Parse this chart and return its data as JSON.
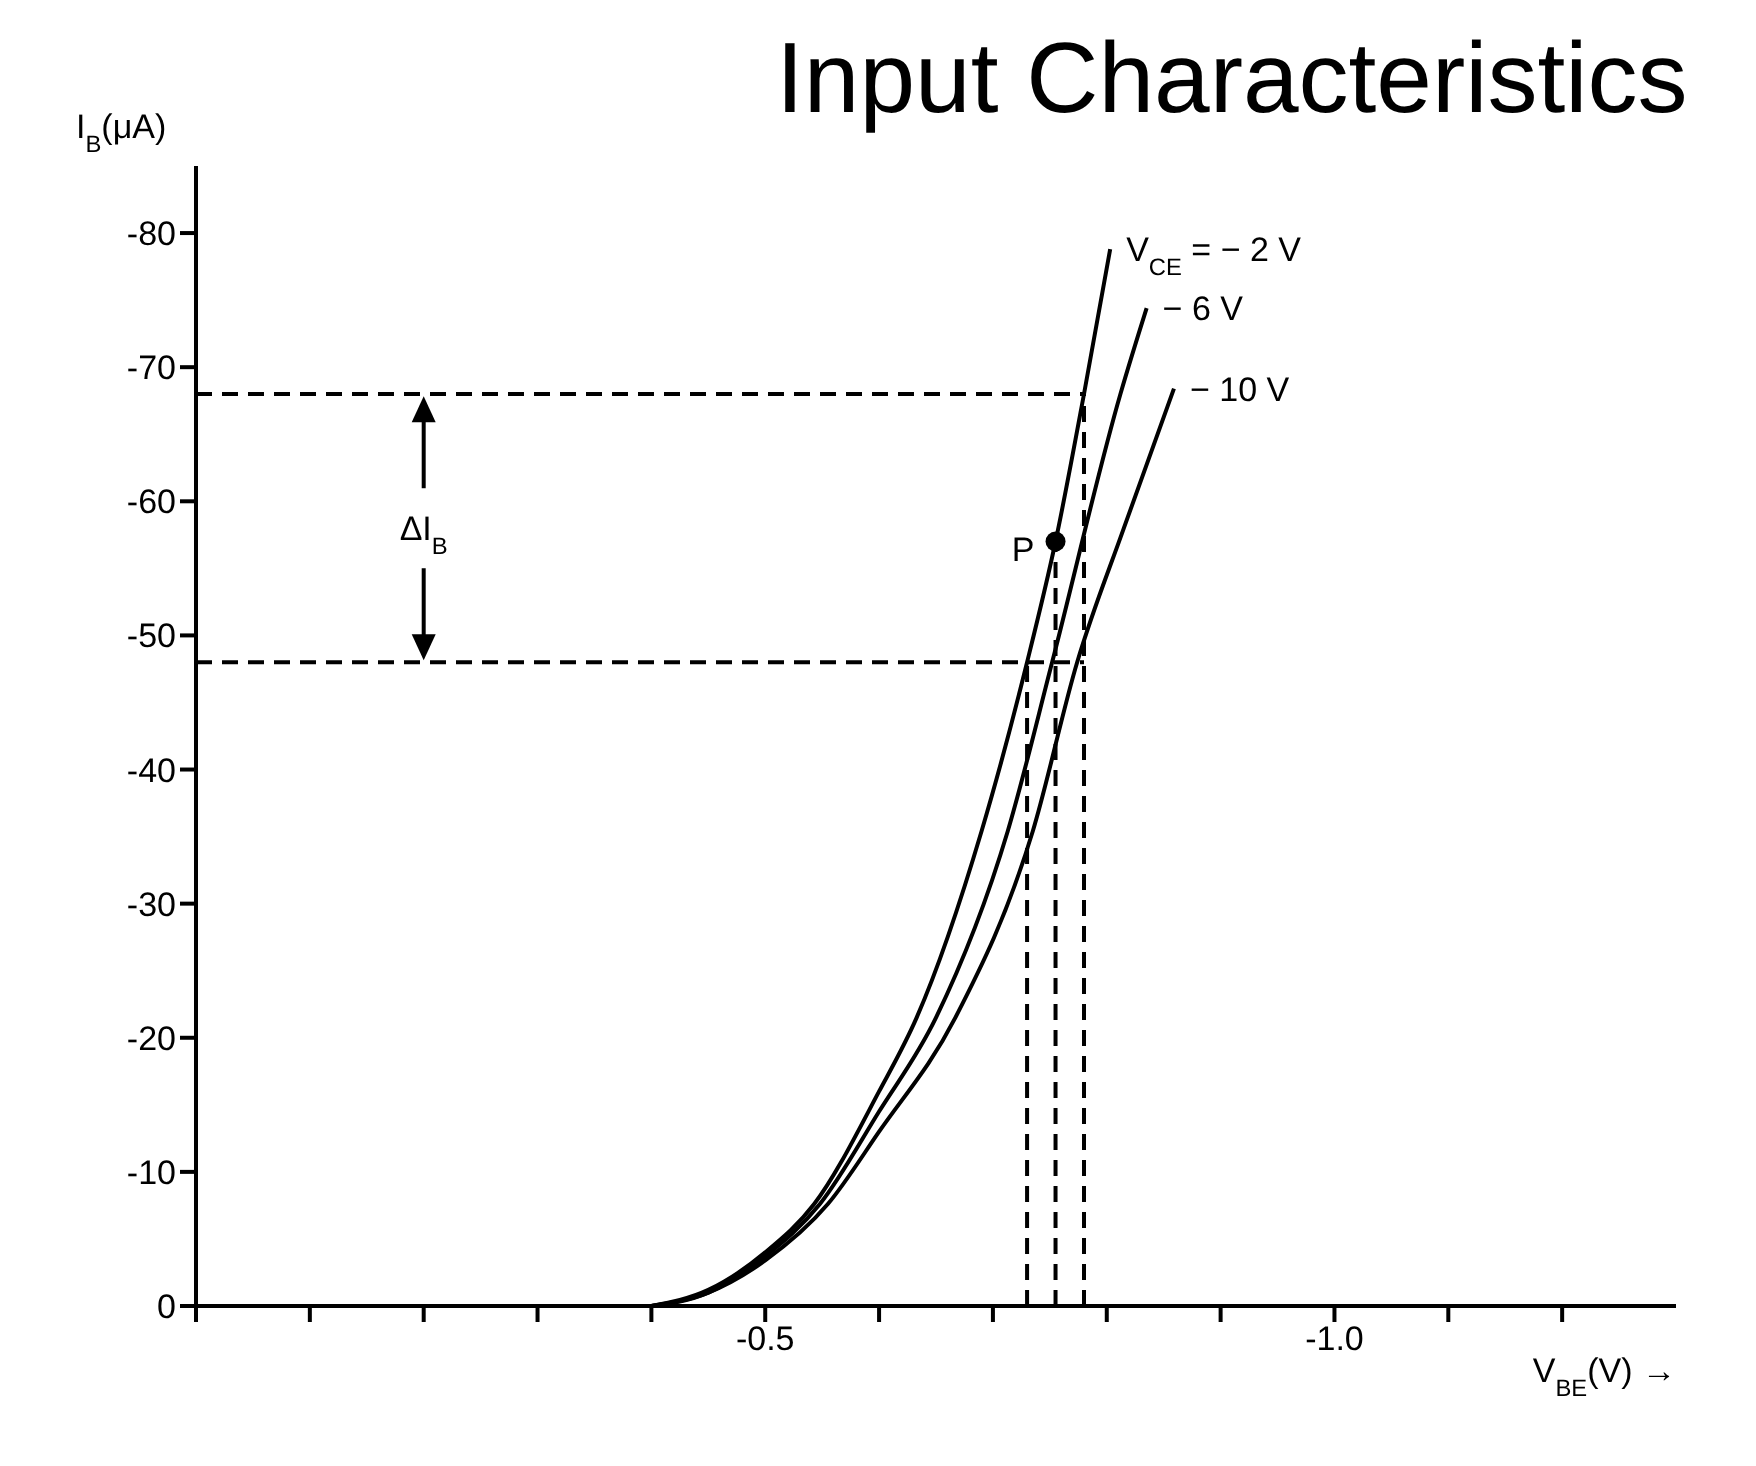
{
  "chart_data": {
    "type": "line",
    "title": "Input Characteristics",
    "xlabel": "V$_{BE}$(V) →",
    "ylabel": "I$_{B}$(μA)",
    "xlim": [
      0,
      -1.3
    ],
    "ylim": [
      0,
      -85
    ],
    "xticks": [
      {
        "value": 0,
        "label": null
      },
      {
        "value": -0.1,
        "label": null
      },
      {
        "value": -0.2,
        "label": null
      },
      {
        "value": -0.3,
        "label": null
      },
      {
        "value": -0.4,
        "label": null
      },
      {
        "value": -0.5,
        "label": "-0.5"
      },
      {
        "value": -0.6,
        "label": null
      },
      {
        "value": -0.7,
        "label": null
      },
      {
        "value": -0.8,
        "label": null
      },
      {
        "value": -0.9,
        "label": null
      },
      {
        "value": -1.0,
        "label": "-1.0"
      },
      {
        "value": -1.1,
        "label": null
      },
      {
        "value": -1.2,
        "label": null
      }
    ],
    "yticks": [
      0,
      -10,
      -20,
      -30,
      -40,
      -50,
      -60,
      -70,
      -80
    ],
    "marker": "none",
    "line_style": "solid",
    "series": [
      {
        "name": "V$_{CE}$ = − 2 V",
        "color": "#000000",
        "x": [
          -0.4,
          -0.45,
          -0.5,
          -0.543,
          -0.6,
          -0.633,
          -0.69,
          -0.73,
          -0.755,
          -0.78,
          -0.803
        ],
        "values": [
          0,
          -1.2,
          -4,
          -7.6,
          -16,
          -21.5,
          -35.4,
          -48,
          -57,
          -68,
          -78.8
        ]
      },
      {
        "name": "− 6 V",
        "color": "#000000",
        "x": [
          -0.4,
          -0.45,
          -0.5,
          -0.548,
          -0.6,
          -0.65,
          -0.713,
          -0.752,
          -0.812,
          -0.835
        ],
        "values": [
          0,
          -1,
          -3.7,
          -7.6,
          -14.5,
          -21.5,
          -35.4,
          -48,
          -68,
          -74.4
        ]
      },
      {
        "name": "− 10 V",
        "color": "#000000",
        "x": [
          -0.4,
          -0.45,
          -0.5,
          -0.555,
          -0.6,
          -0.667,
          -0.735,
          -0.774,
          -0.815,
          -0.859
        ],
        "values": [
          0,
          -1,
          -3.4,
          -7.6,
          -13,
          -21.5,
          -35.4,
          -48,
          -58,
          -68.4
        ]
      },
      {
        "name": "P",
        "type": "scatter",
        "marker": "circle",
        "color": "#000000",
        "x": [
          -0.755
        ],
        "values": [
          -57
        ]
      },
      {
        "color": "#000000",
        "line_style": "dashed",
        "x": [
          0,
          -0.78
        ],
        "values": [
          -68,
          -68
        ]
      },
      {
        "color": "#000000",
        "line_style": "dashed",
        "x": [
          0,
          -0.78
        ],
        "values": [
          -48,
          -48
        ]
      },
      {
        "color": "#000000",
        "line_style": "dashed",
        "x": [
          -0.73,
          -0.73
        ],
        "values": [
          0,
          -48
        ]
      },
      {
        "color": "#000000",
        "line_style": "dashed",
        "x": [
          -0.755,
          -0.755
        ],
        "values": [
          0,
          -57
        ]
      },
      {
        "color": "#000000",
        "line_style": "dashed",
        "x": [
          -0.78,
          -0.78
        ],
        "values": [
          0,
          -68
        ]
      }
    ],
    "annotations": [
      {
        "text": "ΔI$_{B}$",
        "x": -0.2,
        "y": -48
      }
    ]
  }
}
